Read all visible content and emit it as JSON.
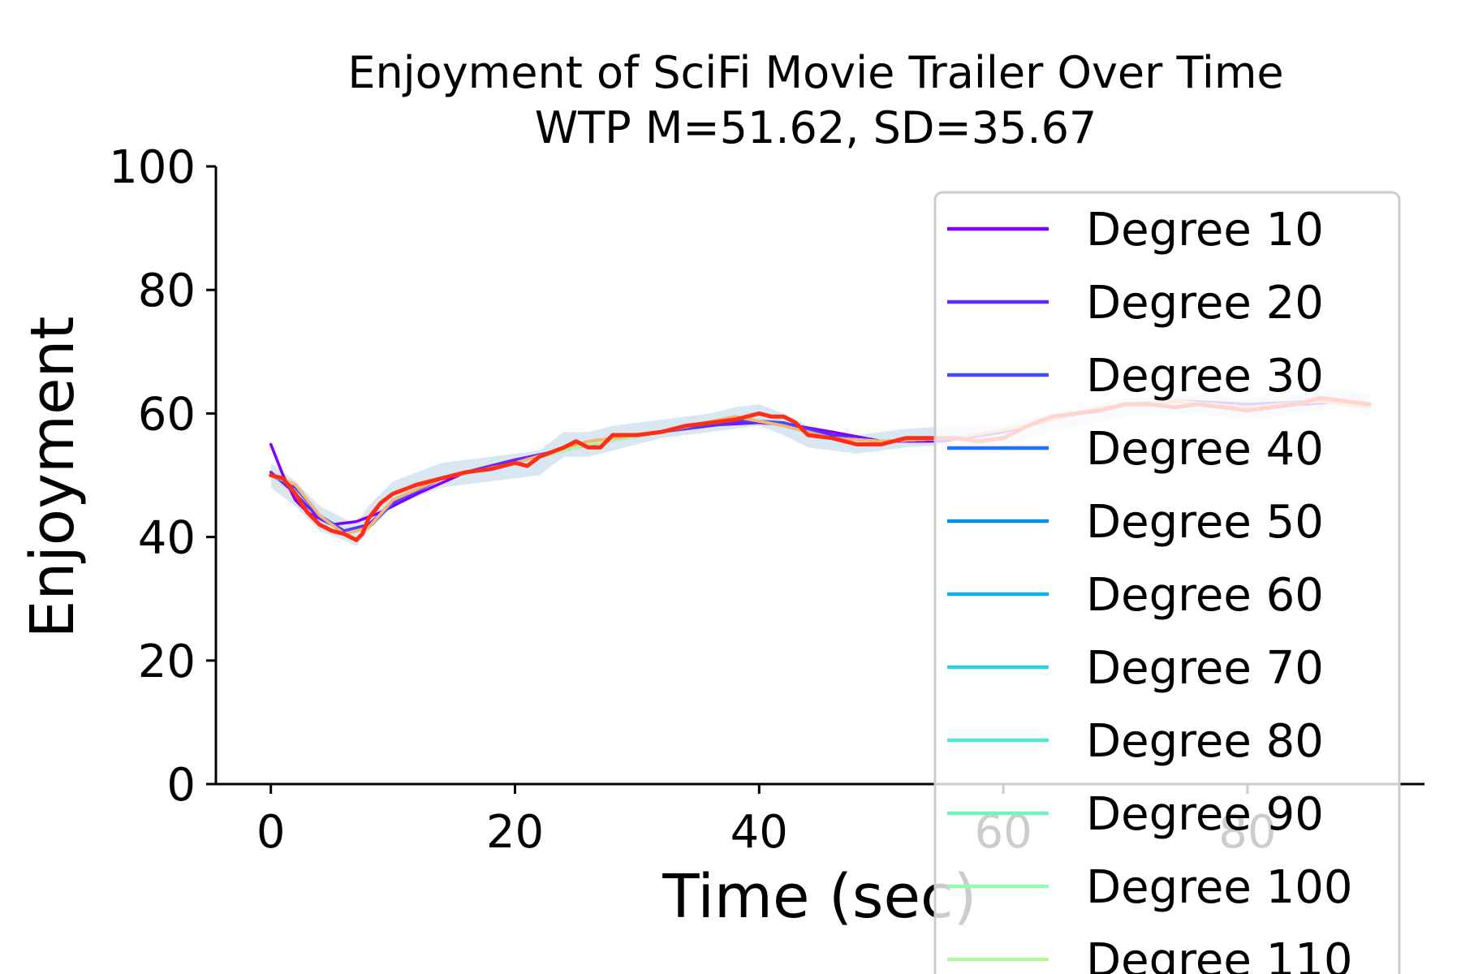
{
  "chart_data": {
    "type": "line",
    "title": "Enjoyment of SciFi Movie Trailer Over Time",
    "subtitle": "WTP M=51.62, SD=35.67",
    "xlabel": "Time (sec)",
    "ylabel": "Enjoyment",
    "xlim": [
      -4.5,
      94.5
    ],
    "ylim": [
      0,
      100
    ],
    "xticks": [
      0,
      20,
      40,
      60,
      80
    ],
    "yticks": [
      0,
      20,
      40,
      60,
      80,
      100
    ],
    "grid": false,
    "legend_placement": "upper-right",
    "band": {
      "color": "#b9d3e9",
      "x": [
        0,
        2,
        4,
        6,
        7,
        8,
        10,
        14,
        18,
        22,
        24,
        26,
        28,
        32,
        36,
        38,
        40,
        42,
        44,
        46,
        48,
        50,
        52,
        56,
        60,
        64,
        70,
        76,
        80,
        84,
        88,
        90
      ],
      "upper": [
        52,
        49,
        45,
        43,
        42,
        45,
        49,
        52,
        53,
        54,
        57,
        57,
        58,
        59,
        60,
        61,
        61.5,
        60,
        58,
        57,
        56.5,
        57,
        57.5,
        58,
        58,
        60,
        62.5,
        63,
        62.5,
        63,
        64,
        63
      ],
      "lower": [
        48,
        45,
        41,
        39.5,
        38.5,
        41,
        45,
        48,
        49,
        50,
        53,
        53,
        54,
        56,
        57,
        57.5,
        58,
        56.5,
        54.5,
        54,
        53.5,
        54,
        54.5,
        55,
        55,
        57,
        59.5,
        60,
        59,
        60,
        61,
        59.5
      ]
    },
    "series": [
      {
        "name": "Degree 10",
        "color": "#8000ff",
        "x": [
          0,
          1,
          2,
          3,
          5,
          7,
          9,
          12,
          16,
          20,
          25,
          30,
          35,
          40,
          43,
          46,
          50,
          55,
          60,
          65,
          70,
          75,
          80,
          85,
          88,
          90
        ],
        "y": [
          55,
          50,
          46,
          44,
          42,
          42.5,
          44,
          47,
          50.5,
          52.5,
          54.5,
          56.5,
          58,
          58.5,
          58,
          57,
          55.5,
          55.5,
          57,
          59.5,
          61.5,
          62,
          61.5,
          61.5,
          62,
          61
        ]
      },
      {
        "name": "Degree 20",
        "color": "#6027fe",
        "x": [
          0,
          2,
          4,
          6,
          8,
          10,
          14,
          20,
          26,
          32,
          38,
          42,
          46,
          50,
          56,
          62,
          68,
          74,
          80,
          86,
          90
        ],
        "y": [
          50.5,
          47,
          43,
          41,
          42,
          45.5,
          49.5,
          52.5,
          55,
          57,
          58.5,
          58.5,
          56.5,
          55.5,
          56,
          58,
          61,
          62,
          61.5,
          62,
          61.5
        ]
      },
      {
        "name": "Degree 30",
        "color": "#404cfd",
        "x": [
          0,
          2,
          4,
          6,
          8,
          10,
          14,
          20,
          26,
          32,
          38,
          42,
          46,
          50,
          56,
          62,
          68,
          74,
          80,
          86,
          90
        ],
        "y": [
          50,
          48,
          43.5,
          41,
          41.5,
          45.5,
          49.5,
          52,
          55,
          57,
          59,
          58.5,
          56,
          55.5,
          56,
          58,
          61,
          62,
          61,
          62,
          61.5
        ]
      },
      {
        "name": "Degree 40",
        "color": "#2070f9",
        "x": [
          0,
          2,
          4,
          6,
          8,
          10,
          14,
          20,
          26,
          32,
          38,
          42,
          46,
          50,
          56,
          62,
          68,
          74,
          80,
          86,
          90
        ],
        "y": [
          50,
          48.5,
          43.5,
          40.5,
          41.5,
          46,
          49.5,
          52,
          55,
          57,
          59.5,
          58,
          56,
          55.5,
          56,
          58,
          61,
          62,
          61,
          62,
          61
        ]
      },
      {
        "name": "Degree 50",
        "color": "#0090f2",
        "x": [
          0,
          2,
          4,
          6,
          8,
          10,
          14,
          20,
          26,
          32,
          38,
          42,
          46,
          50,
          56,
          62,
          68,
          74,
          80,
          86,
          90
        ],
        "y": [
          50,
          48.5,
          43.5,
          40.5,
          41.5,
          46,
          49.5,
          52,
          55,
          57,
          59.5,
          58,
          56,
          55.5,
          56,
          58,
          61,
          62,
          61,
          62,
          61
        ]
      },
      {
        "name": "Degree 60",
        "color": "#10b2e8",
        "x": [
          0,
          2,
          4,
          6,
          8,
          10,
          14,
          20,
          26,
          32,
          38,
          42,
          46,
          50,
          56,
          62,
          68,
          74,
          80,
          86,
          90
        ],
        "y": [
          50,
          48.5,
          43.5,
          40.5,
          41.5,
          46,
          49.5,
          52,
          55,
          57,
          59.5,
          58,
          56,
          55.5,
          56,
          58,
          61,
          62,
          61,
          62,
          61
        ]
      },
      {
        "name": "Degree 70",
        "color": "#30d0dc",
        "x": [
          0,
          2,
          4,
          6,
          8,
          10,
          14,
          20,
          26,
          32,
          38,
          42,
          46,
          50,
          56,
          62,
          68,
          74,
          80,
          86,
          90
        ],
        "y": [
          50,
          48.5,
          43.5,
          40.5,
          41.5,
          46,
          49.5,
          52,
          55,
          57,
          59.5,
          58,
          56,
          55.5,
          56,
          58,
          61,
          62,
          61,
          62,
          61
        ]
      },
      {
        "name": "Degree 80",
        "color": "#50e6ce",
        "x": [
          0,
          2,
          4,
          6,
          8,
          10,
          14,
          20,
          26,
          32,
          38,
          42,
          46,
          50,
          56,
          62,
          68,
          74,
          80,
          86,
          90
        ],
        "y": [
          50,
          48.5,
          43.5,
          40.5,
          41.5,
          46,
          49.5,
          52,
          55,
          57,
          59.5,
          58,
          56,
          55.5,
          56,
          58,
          61,
          62,
          61,
          62,
          61
        ]
      },
      {
        "name": "Degree 90",
        "color": "#70f4be",
        "x": [
          0,
          2,
          4,
          6,
          8,
          10,
          14,
          20,
          26,
          32,
          38,
          42,
          46,
          50,
          56,
          62,
          68,
          74,
          80,
          86,
          90
        ],
        "y": [
          50,
          48.5,
          43.5,
          40.5,
          41.5,
          46,
          49.5,
          52,
          55,
          57,
          59.5,
          58,
          56,
          55.5,
          56,
          58,
          61,
          62,
          61,
          62,
          61
        ]
      },
      {
        "name": "Degree 100",
        "color": "#90feae",
        "x": [
          0,
          2,
          4,
          6,
          8,
          10,
          14,
          20,
          26,
          32,
          38,
          42,
          46,
          50,
          56,
          62,
          68,
          74,
          80,
          86,
          90
        ],
        "y": [
          50,
          48.5,
          43.5,
          40.5,
          41.5,
          46,
          49.5,
          52,
          55,
          57,
          59.5,
          58,
          56,
          55.5,
          56,
          58,
          61,
          62,
          61,
          62,
          61
        ]
      },
      {
        "name": "Degree 110",
        "color": "#b0f89b",
        "x": [
          0,
          2,
          4,
          6,
          8,
          10,
          14,
          20,
          26,
          32,
          38,
          42,
          46,
          50,
          56,
          62,
          68,
          74,
          80,
          86,
          90
        ],
        "y": [
          50,
          48.5,
          43.5,
          40.5,
          41.5,
          46,
          49.5,
          52,
          55,
          57,
          59.5,
          58,
          56,
          55.5,
          56,
          58,
          61,
          62,
          61,
          62,
          61
        ]
      },
      {
        "color": "#ffb070",
        "x": [
          0,
          2,
          4,
          6,
          8,
          10,
          14,
          20,
          26,
          32,
          38,
          42,
          46,
          50,
          56,
          62,
          68,
          74,
          80,
          86,
          90
        ],
        "y": [
          50,
          48.5,
          43.5,
          40.5,
          41.5,
          46,
          49.5,
          52,
          55.5,
          57,
          59.5,
          58,
          56,
          55.5,
          56,
          58,
          61,
          62,
          61,
          62,
          61
        ]
      },
      {
        "color": "#ff2d16",
        "x": [
          0,
          1,
          2,
          3,
          4,
          5,
          6,
          7,
          7.5,
          8,
          9,
          10,
          12,
          14,
          16,
          18,
          20,
          21,
          22,
          24,
          25,
          26,
          27,
          28,
          30,
          32,
          34,
          36,
          38,
          40,
          41,
          42,
          43,
          44,
          46,
          48,
          50,
          52,
          54,
          56,
          58,
          60,
          62,
          64,
          66,
          68,
          70,
          72,
          74,
          76,
          78,
          80,
          82,
          84,
          86,
          88,
          90
        ],
        "y": [
          50,
          49.5,
          47,
          44,
          42,
          41,
          40.5,
          39.5,
          40.5,
          43,
          45.5,
          47,
          48.5,
          49.5,
          50.5,
          51,
          52,
          51.5,
          53,
          54.5,
          55.5,
          54.5,
          54.5,
          56.5,
          56.5,
          57,
          58,
          58.5,
          59,
          60,
          59.5,
          59.5,
          58.5,
          56.5,
          56,
          55,
          55,
          56,
          56,
          56,
          55.5,
          56,
          58,
          59.5,
          60,
          60.5,
          61.5,
          61.5,
          61,
          61.5,
          61,
          60.5,
          61,
          61.5,
          62.5,
          62,
          61.5
        ]
      }
    ]
  }
}
